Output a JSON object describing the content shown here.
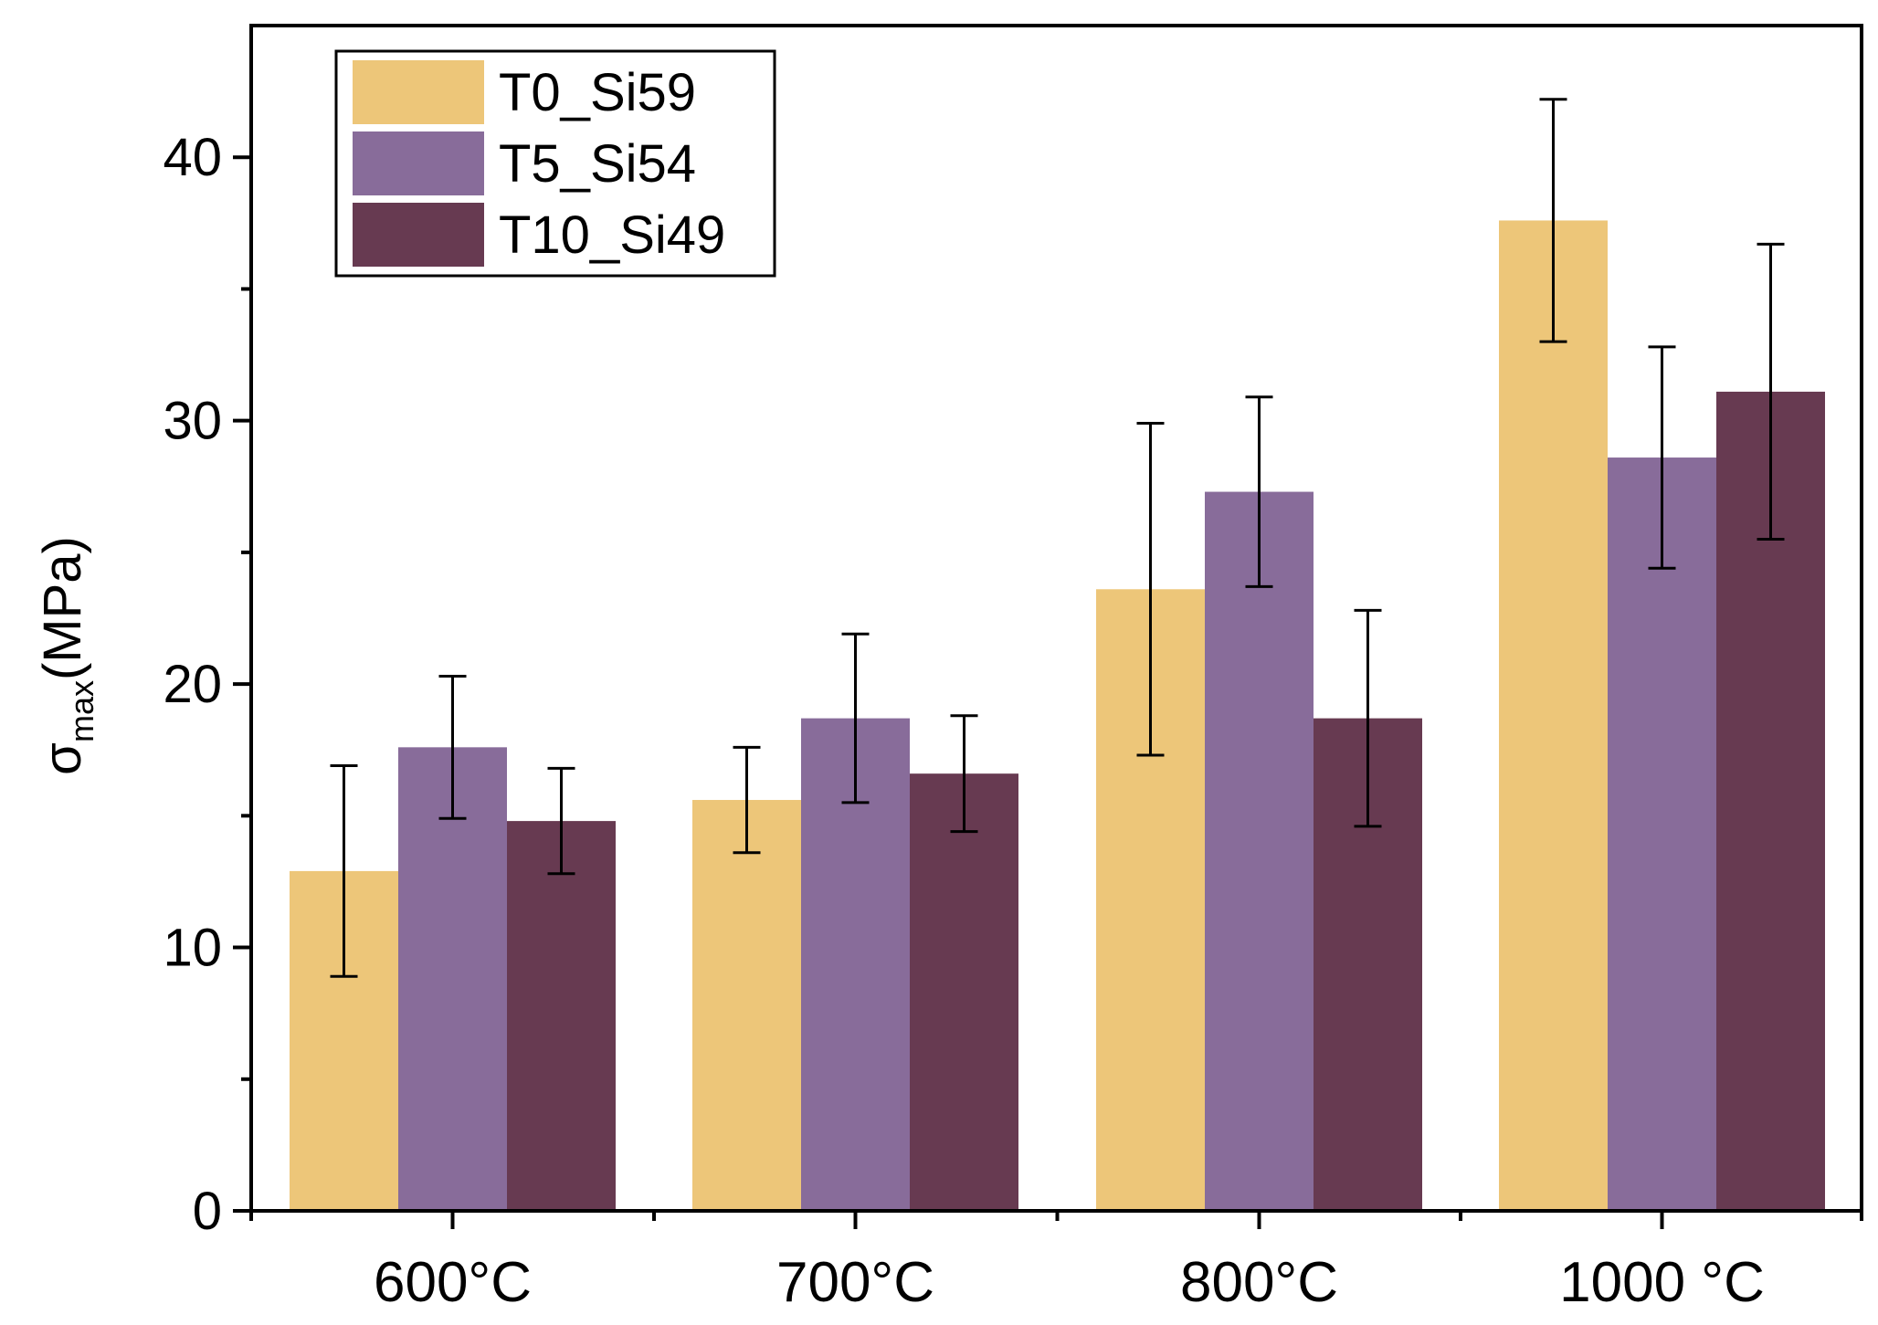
{
  "chart_data": {
    "type": "bar",
    "title": "",
    "xlabel": "",
    "ylabel_symbol": "σ",
    "ylabel_subscript": "max",
    "ylabel_unit": "(MPa)",
    "ylim": [
      0,
      45
    ],
    "yticks_major": [
      0,
      10,
      20,
      30,
      40
    ],
    "yticks_major_labels": [
      "0",
      "10",
      "20",
      "30",
      "40"
    ],
    "yticks_minor": [
      5,
      15,
      25,
      35
    ],
    "categories": [
      "600°C",
      "700°C",
      "800°C",
      "1000 °C"
    ],
    "legend_position": "top-left",
    "series": [
      {
        "name": "T0_Si59",
        "color": "#EDC679",
        "values": [
          12.9,
          15.6,
          23.6,
          37.6
        ],
        "errors": [
          4.0,
          2.0,
          6.3,
          4.6
        ]
      },
      {
        "name": "T5_Si54",
        "color": "#886C9A",
        "values": [
          17.6,
          18.7,
          27.3,
          28.6
        ],
        "errors": [
          2.7,
          3.2,
          3.6,
          4.2
        ]
      },
      {
        "name": "T10_Si49",
        "color": "#673A51",
        "values": [
          14.8,
          16.6,
          18.7,
          31.1
        ],
        "errors": [
          2.0,
          2.2,
          4.1,
          5.6
        ]
      }
    ]
  }
}
